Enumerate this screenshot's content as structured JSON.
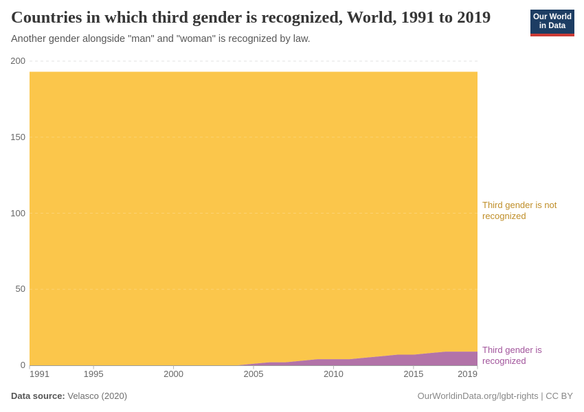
{
  "header": {
    "title": "Countries in which third gender is recognized, World, 1991 to 2019",
    "subtitle": "Another gender alongside \"man\" and \"woman\" is recognized by law."
  },
  "logo": {
    "line1": "Our World",
    "line2": "in Data",
    "bg_color": "#1d3d63",
    "bar_color": "#cc3b35"
  },
  "chart_data": {
    "type": "area",
    "stacked": true,
    "x": [
      1991,
      1992,
      1993,
      1994,
      1995,
      1996,
      1997,
      1998,
      1999,
      2000,
      2001,
      2002,
      2003,
      2004,
      2005,
      2006,
      2007,
      2008,
      2009,
      2010,
      2011,
      2012,
      2013,
      2014,
      2015,
      2016,
      2017,
      2018,
      2019
    ],
    "series": [
      {
        "name": "Third gender is recognized",
        "color": "#b273a8",
        "label_color": "#a2559c",
        "values": [
          0,
          0,
          0,
          0,
          0,
          0,
          0,
          0,
          0,
          0,
          0,
          0,
          0,
          0,
          1,
          2,
          2,
          3,
          4,
          4,
          4,
          5,
          6,
          7,
          7,
          8,
          9,
          9,
          9
        ]
      },
      {
        "name": "Third gender is not recognized",
        "color": "#fbc64b",
        "label_color": "#bf8e28",
        "values": [
          193,
          193,
          193,
          193,
          193,
          193,
          193,
          193,
          193,
          193,
          193,
          193,
          193,
          193,
          192,
          191,
          191,
          190,
          189,
          189,
          189,
          188,
          187,
          186,
          186,
          185,
          184,
          184,
          184
        ]
      }
    ],
    "total": 193,
    "ylim": [
      0,
      200
    ],
    "yticks": [
      0,
      50,
      100,
      150,
      200
    ],
    "xticks": [
      1991,
      1995,
      2000,
      2005,
      2010,
      2015,
      2019
    ],
    "grid": "dashed"
  },
  "footer": {
    "datasource_label": "Data source:",
    "datasource_value": "Velasco (2020)",
    "right": "OurWorldinData.org/lgbt-rights | CC BY"
  }
}
